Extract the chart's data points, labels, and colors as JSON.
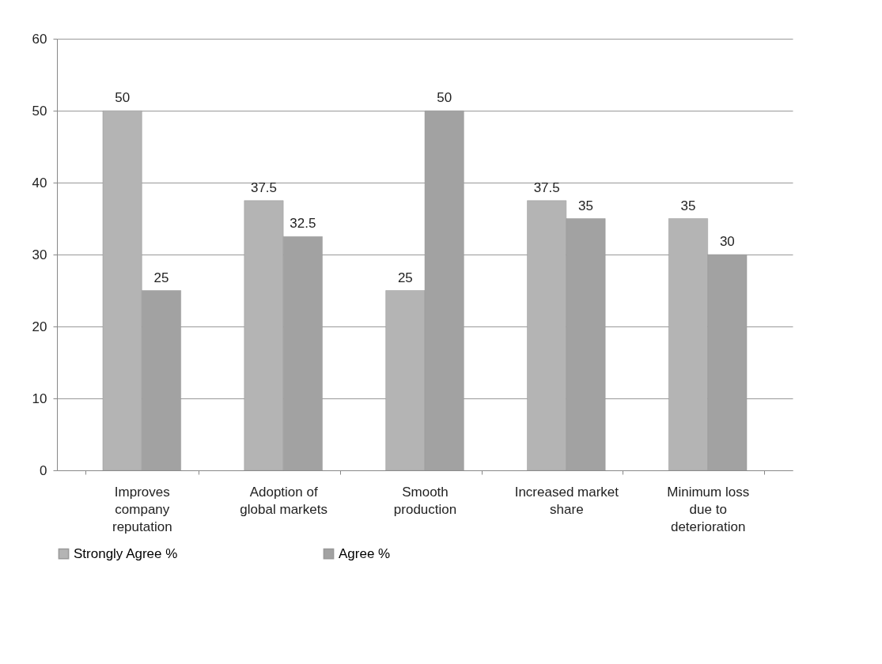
{
  "chart_data": {
    "type": "bar",
    "categories": [
      "Improves\ncompany\nreputation",
      "Adoption of\nglobal markets",
      "Smooth\nproduction",
      "Increased market\nshare",
      "Minimum loss\ndue to\ndeterioration"
    ],
    "series": [
      {
        "name": "Strongly Agree %",
        "color": "#b4b4b4",
        "values": [
          50,
          37.5,
          25,
          37.5,
          35
        ]
      },
      {
        "name": "Agree %",
        "color": "#a2a2a2",
        "values": [
          25,
          32.5,
          50,
          35,
          30
        ]
      }
    ],
    "ylim": [
      0,
      60
    ],
    "yticks": [
      0,
      10,
      20,
      30,
      40,
      50,
      60
    ],
    "grid": "y",
    "legend": "bottom",
    "data_labels": true
  }
}
